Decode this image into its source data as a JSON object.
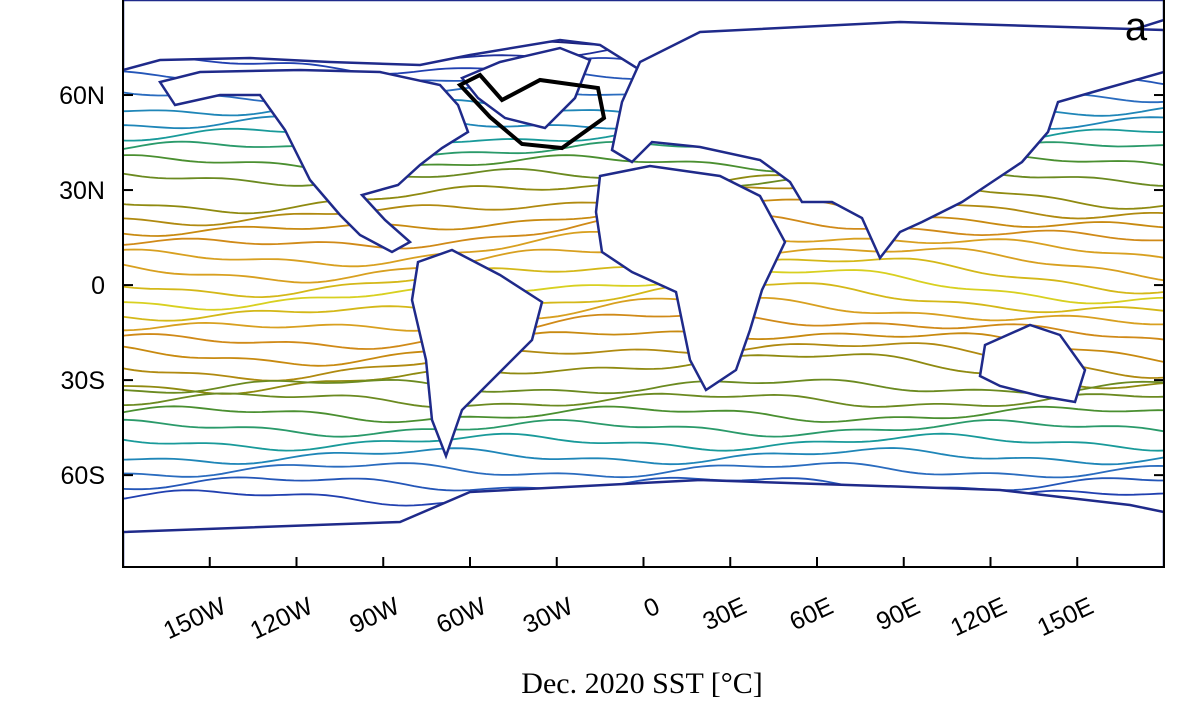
{
  "chart_data": {
    "type": "map",
    "panel_label": "a",
    "xlabel": "Dec. 2020 SST [°C]",
    "xlim": [
      -180,
      180
    ],
    "ylim": [
      -89,
      90
    ],
    "xticks": [
      {
        "value": -150,
        "label": "150W"
      },
      {
        "value": -120,
        "label": "120W"
      },
      {
        "value": -90,
        "label": "90W"
      },
      {
        "value": -60,
        "label": "60W"
      },
      {
        "value": -30,
        "label": "30W"
      },
      0,
      {
        "value": 30,
        "label": "30E"
      },
      {
        "value": 60,
        "label": "60E"
      },
      {
        "value": 90,
        "label": "90E"
      },
      {
        "value": 120,
        "label": "120E"
      },
      {
        "value": 150,
        "label": "150E"
      }
    ],
    "yticks": [
      {
        "value": -60,
        "label": "60S"
      },
      {
        "value": -30,
        "label": "30S"
      },
      0,
      {
        "value": 30,
        "label": "30N"
      },
      {
        "value": 60,
        "label": "60N"
      }
    ]
  }
}
